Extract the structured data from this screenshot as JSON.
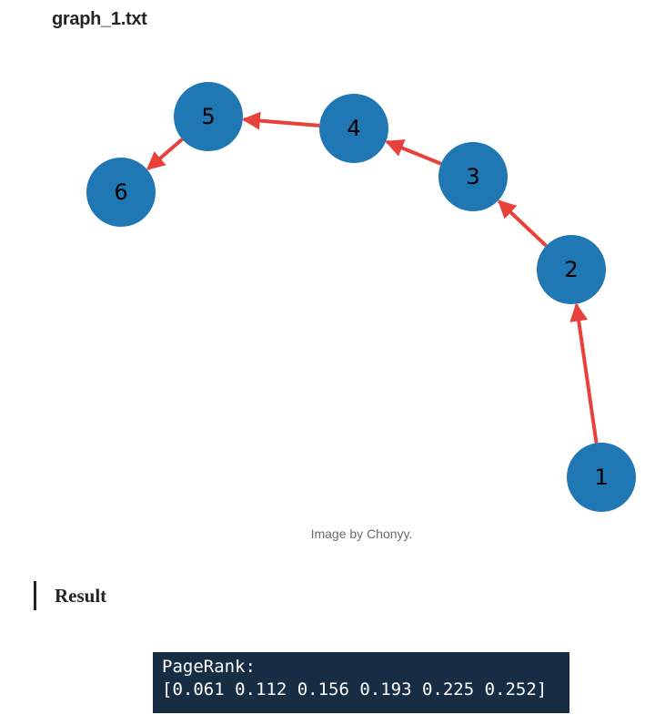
{
  "heading": "graph_1.txt",
  "figure": {
    "nodes": [
      {
        "label": "1"
      },
      {
        "label": "2"
      },
      {
        "label": "3"
      },
      {
        "label": "4"
      },
      {
        "label": "5"
      },
      {
        "label": "6"
      }
    ],
    "caption": "Image by Chonyy."
  },
  "section": {
    "title": "Result"
  },
  "code": {
    "lines": [
      "PageRank:",
      "[0.061 0.112 0.156 0.193 0.225 0.252]"
    ]
  }
}
